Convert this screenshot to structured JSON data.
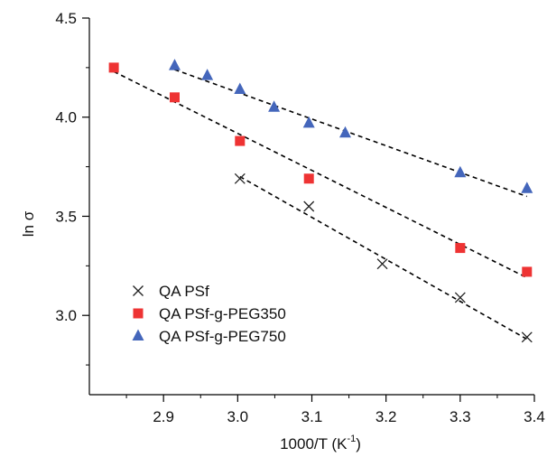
{
  "chart_data": {
    "type": "scatter",
    "title": "",
    "xlabel": "1000/T (K",
    "xlabel_sup": "-1",
    "xlabel_close": ")",
    "ylabel": "ln σ",
    "xlim": [
      2.8,
      3.4
    ],
    "ylim": [
      2.6,
      4.5
    ],
    "x_ticks": [
      {
        "value": 2.9,
        "label": "2.9"
      },
      {
        "value": 3.0,
        "label": "3.0"
      },
      {
        "value": 3.1,
        "label": "3.1"
      },
      {
        "value": 3.2,
        "label": "3.2"
      },
      {
        "value": 3.3,
        "label": "3.3"
      },
      {
        "value": 3.4,
        "label": "3.4"
      }
    ],
    "y_ticks": [
      {
        "value": 3.0,
        "label": "3.0"
      },
      {
        "value": 3.5,
        "label": "3.5"
      },
      {
        "value": 4.0,
        "label": "4.0"
      },
      {
        "value": 4.5,
        "label": "4.5"
      }
    ],
    "grid": false,
    "legend_position": "bottom-left",
    "series": [
      {
        "name": "QA PSf",
        "marker": "x",
        "color": "#222222",
        "points": [
          {
            "x": 3.003,
            "y": 3.69
          },
          {
            "x": 3.096,
            "y": 3.55
          },
          {
            "x": 3.195,
            "y": 3.26
          },
          {
            "x": 3.3,
            "y": 3.09
          },
          {
            "x": 3.39,
            "y": 2.89
          }
        ],
        "fit": {
          "x1": 3.003,
          "y1": 3.7,
          "x2": 3.39,
          "y2": 2.88
        }
      },
      {
        "name": "QA PSf-g-PEG350",
        "marker": "square",
        "color": "#ee3333",
        "points": [
          {
            "x": 2.833,
            "y": 4.25
          },
          {
            "x": 2.915,
            "y": 4.1
          },
          {
            "x": 3.003,
            "y": 3.88
          },
          {
            "x": 3.096,
            "y": 3.69
          },
          {
            "x": 3.3,
            "y": 3.34
          },
          {
            "x": 3.39,
            "y": 3.22
          }
        ],
        "fit": {
          "x1": 2.833,
          "y1": 4.23,
          "x2": 3.39,
          "y2": 3.19
        }
      },
      {
        "name": "QA PSf-g-PEG750",
        "marker": "triangle",
        "color": "#4466bb",
        "points": [
          {
            "x": 2.915,
            "y": 4.26
          },
          {
            "x": 2.959,
            "y": 4.21
          },
          {
            "x": 3.003,
            "y": 4.14
          },
          {
            "x": 3.049,
            "y": 4.05
          },
          {
            "x": 3.096,
            "y": 3.97
          },
          {
            "x": 3.145,
            "y": 3.92
          },
          {
            "x": 3.3,
            "y": 3.72
          },
          {
            "x": 3.39,
            "y": 3.64
          }
        ],
        "fit": {
          "x1": 2.915,
          "y1": 4.24,
          "x2": 3.39,
          "y2": 3.6
        }
      }
    ]
  }
}
